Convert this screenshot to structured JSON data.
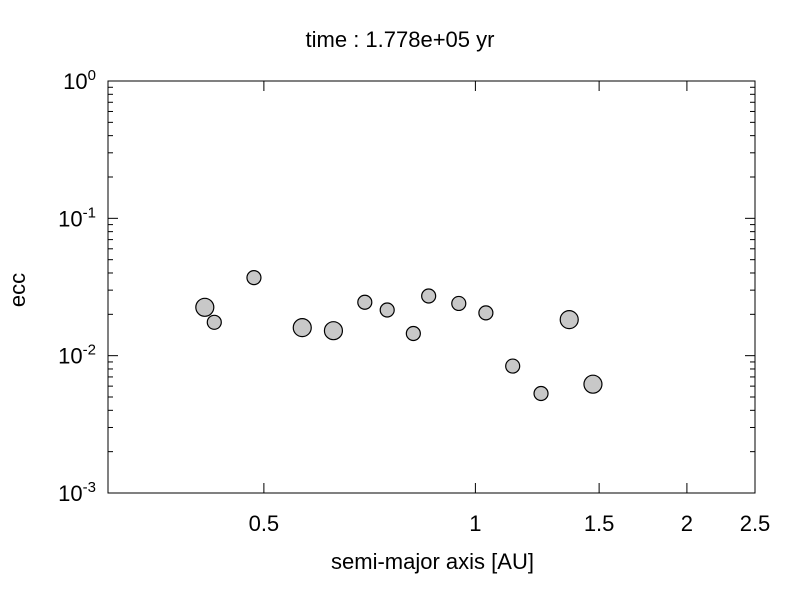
{
  "chart_data": {
    "type": "scatter",
    "title": "time : 1.778e+05 yr",
    "xlabel": "semi-major axis [AU]",
    "ylabel": "ecc",
    "x_scale": "log",
    "y_scale": "log",
    "xlim": [
      0.3,
      2.5
    ],
    "ylim": [
      0.001,
      1
    ],
    "x_ticks": [
      {
        "value": 0.5,
        "label": "0.5"
      },
      {
        "value": 1,
        "label": "1"
      },
      {
        "value": 1.5,
        "label": "1.5"
      },
      {
        "value": 2,
        "label": "2"
      },
      {
        "value": 2.5,
        "label": "2.5"
      }
    ],
    "y_ticks": [
      {
        "value": 0.001,
        "base": "10",
        "exp": "-3"
      },
      {
        "value": 0.01,
        "base": "10",
        "exp": "-2"
      },
      {
        "value": 0.1,
        "base": "10",
        "exp": "-1"
      },
      {
        "value": 1,
        "base": "10",
        "exp": "0"
      }
    ],
    "marker_fill": "#c8c8c8",
    "marker_stroke": "#000000",
    "grid": false,
    "points": [
      {
        "x": 0.412,
        "y": 0.0225,
        "size": "medium"
      },
      {
        "x": 0.425,
        "y": 0.0175,
        "size": "small"
      },
      {
        "x": 0.484,
        "y": 0.037,
        "size": "small"
      },
      {
        "x": 0.567,
        "y": 0.016,
        "size": "medium"
      },
      {
        "x": 0.628,
        "y": 0.0152,
        "size": "medium"
      },
      {
        "x": 0.696,
        "y": 0.0245,
        "size": "small"
      },
      {
        "x": 0.749,
        "y": 0.0215,
        "size": "small"
      },
      {
        "x": 0.816,
        "y": 0.0145,
        "size": "small"
      },
      {
        "x": 0.858,
        "y": 0.0272,
        "size": "small"
      },
      {
        "x": 0.947,
        "y": 0.024,
        "size": "small"
      },
      {
        "x": 1.035,
        "y": 0.0205,
        "size": "small"
      },
      {
        "x": 1.13,
        "y": 0.0084,
        "size": "small"
      },
      {
        "x": 1.24,
        "y": 0.0053,
        "size": "small"
      },
      {
        "x": 1.36,
        "y": 0.0183,
        "size": "medium"
      },
      {
        "x": 1.47,
        "y": 0.0062,
        "size": "medium"
      }
    ]
  }
}
